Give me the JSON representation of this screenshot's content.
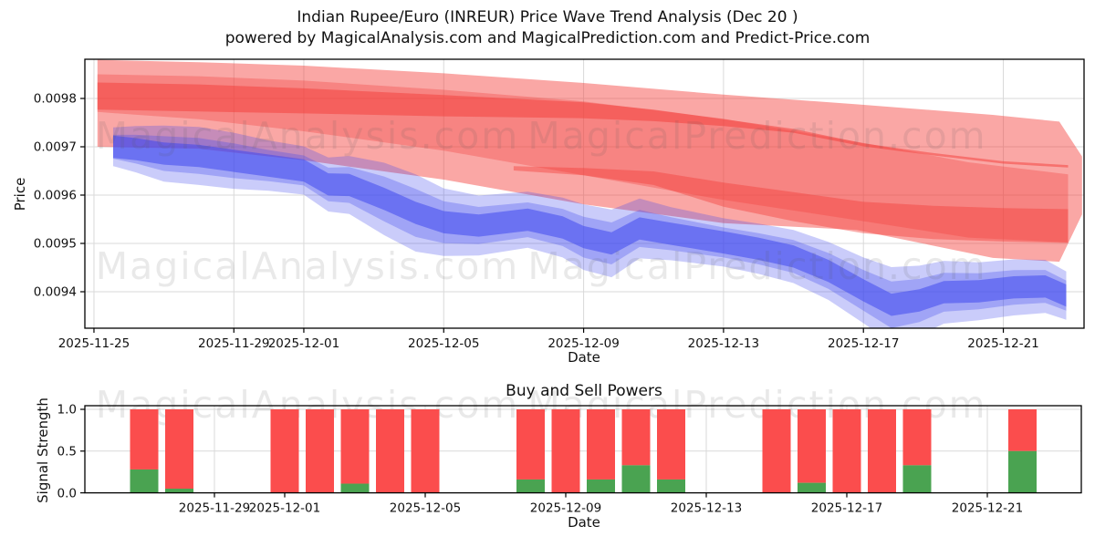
{
  "title": {
    "line1": "Indian Rupee/Euro (INREUR) Price Wave Trend Analysis (Dec 20 )",
    "line2": "powered by MagicalAnalysis.com and MagicalPrediction.com and Predict-Price.com"
  },
  "watermarks": {
    "left_text": "MagicalAnalysis.com",
    "right_text": "MagicalPrediction.com"
  },
  "colors": {
    "band_red_base": "244,60,56",
    "band_blue_base": "64,72,238",
    "red_light_alpha": 0.45,
    "red_mid_alpha": 0.32,
    "red_core_alpha": 0.5,
    "red_core2_alpha": 0.42,
    "blue_light_alpha": 0.28,
    "blue_mid_alpha": 0.3,
    "blue_core_alpha": 0.55,
    "bar_red": "#fb4d4d",
    "bar_green": "#4aa351",
    "grid": "#d9d9d9",
    "spine": "#000000",
    "tick_text": "#111111",
    "watermark_color": "#555555"
  },
  "chart_data": [
    {
      "type": "area",
      "title": "Indian Rupee/Euro (INREUR) Price Wave Trend Analysis (Dec 20 )",
      "xlabel": "Date",
      "ylabel": "Price",
      "day0": "2025-11-24",
      "x_ticks": [
        {
          "day": 1,
          "label": "2025-11-25"
        },
        {
          "day": 5,
          "label": "2025-11-29"
        },
        {
          "day": 7,
          "label": "2025-12-01"
        },
        {
          "day": 11,
          "label": "2025-12-05"
        },
        {
          "day": 15,
          "label": "2025-12-09"
        },
        {
          "day": 19,
          "label": "2025-12-13"
        },
        {
          "day": 23,
          "label": "2025-12-17"
        },
        {
          "day": 27,
          "label": "2025-12-21"
        }
      ],
      "y_ticks": [
        {
          "value": 0.0098,
          "label": "0.0098"
        },
        {
          "value": 0.0097,
          "label": "0.0097"
        },
        {
          "value": 0.0096,
          "label": "0.0096"
        },
        {
          "value": 0.0095,
          "label": "0.0095"
        },
        {
          "value": 0.0094,
          "label": "0.0094"
        }
      ],
      "ylim": [
        0.009325,
        0.009881
      ],
      "grid": true,
      "bands": {
        "red": {
          "light": {
            "d": [
              1.1,
              4,
              7,
              11,
              15,
              19,
              22.8,
              26.7,
              28.6,
              29.25
            ],
            "top": [
              0.00988,
              0.009875,
              0.009868,
              0.009852,
              0.009832,
              0.009808,
              0.009788,
              0.009766,
              0.009752,
              0.00968
            ],
            "bot": [
              0.0097,
              0.009696,
              0.009672,
              0.009632,
              0.009581,
              0.009542,
              0.009528,
              0.00947,
              0.009462,
              0.00956
            ]
          },
          "mid": {
            "d": [
              1.1,
              4,
              7,
              11,
              15,
              19,
              23,
              26,
              28.85
            ],
            "top": [
              0.00985,
              0.009846,
              0.009837,
              0.009818,
              0.009794,
              0.009758,
              0.009708,
              0.009668,
              0.009643
            ],
            "bot": [
              0.009772,
              0.009757,
              0.009732,
              0.009692,
              0.009641,
              0.00959,
              0.009546,
              0.009512,
              0.009502
            ]
          },
          "core": {
            "d": [
              1.1,
              4,
              7,
              11,
              15,
              17,
              19,
              21,
              23,
              25,
              27,
              28.85
            ],
            "top": [
              0.009833,
              0.009829,
              0.009821,
              0.009807,
              0.009792,
              0.009777,
              0.009757,
              0.009737,
              0.009707,
              0.009687,
              0.00967,
              0.009662
            ],
            "bot": [
              0.009777,
              0.009773,
              0.009769,
              0.009763,
              0.009759,
              0.009753,
              0.009743,
              0.009729,
              0.009701,
              0.009682,
              0.009665,
              0.009657
            ]
          },
          "core2": {
            "d": [
              13,
              15,
              17,
              19,
              21,
              23,
              25,
              27,
              28.85
            ],
            "top": [
              0.00966,
              0.009656,
              0.009649,
              0.009626,
              0.009606,
              0.009586,
              0.009578,
              0.009573,
              0.009571
            ],
            "bot": [
              0.009651,
              0.009641,
              0.009621,
              0.009576,
              0.009546,
              0.009521,
              0.009509,
              0.009504,
              0.009501
            ]
          }
        },
        "blue": {
          "points_d_center_halfwidth": [
            [
              1.55,
              0.0097,
              4e-05
            ],
            [
              2.2,
              0.009695,
              4.8e-05
            ],
            [
              3,
              0.009686,
              5.8e-05
            ],
            [
              4,
              0.009681,
              6e-05
            ],
            [
              5,
              0.009671,
              5.8e-05
            ],
            [
              6,
              0.009661,
              5.2e-05
            ],
            [
              7,
              0.009651,
              5e-05
            ],
            [
              7.7,
              0.009622,
              5.6e-05
            ],
            [
              8.3,
              0.009621,
              6e-05
            ],
            [
              9.3,
              0.009592,
              7.5e-05
            ],
            [
              10.2,
              0.009563,
              8e-05
            ],
            [
              11,
              0.009544,
              7e-05
            ],
            [
              12,
              0.009537,
              6.2e-05
            ],
            [
              13.4,
              0.009549,
              5.8e-05
            ],
            [
              14.4,
              0.009533,
              6.2e-05
            ],
            [
              15,
              0.009513,
              6.8e-05
            ],
            [
              15.8,
              0.0095,
              7e-05
            ],
            [
              16.6,
              0.009531,
              6.2e-05
            ],
            [
              17.5,
              0.00952,
              5.5e-05
            ],
            [
              19,
              0.009502,
              5e-05
            ],
            [
              20,
              0.009489,
              5.2e-05
            ],
            [
              21,
              0.009473,
              5.5e-05
            ],
            [
              22,
              0.009443,
              6e-05
            ],
            [
              23,
              0.009403,
              6.8e-05
            ],
            [
              23.8,
              0.009373,
              7.8e-05
            ],
            [
              24.6,
              0.009382,
              7.2e-05
            ],
            [
              25.3,
              0.009399,
              6.5e-05
            ],
            [
              26.3,
              0.009401,
              6e-05
            ],
            [
              27.3,
              0.009409,
              5.8e-05
            ],
            [
              28.2,
              0.009411,
              5.5e-05
            ],
            [
              28.8,
              0.009392,
              5e-05
            ]
          ],
          "mid_width_ratio": 0.62,
          "core_halfwidth": 2.3e-05
        }
      }
    },
    {
      "type": "bar",
      "title": "Buy and Sell Powers",
      "xlabel": "Date",
      "ylabel": "Signal Strength",
      "day0": "2025-11-24",
      "x_ticks": [
        {
          "day": 5,
          "label": "2025-11-29"
        },
        {
          "day": 7,
          "label": "2025-12-01"
        },
        {
          "day": 11,
          "label": "2025-12-05"
        },
        {
          "day": 15,
          "label": "2025-12-09"
        },
        {
          "day": 19,
          "label": "2025-12-13"
        },
        {
          "day": 23,
          "label": "2025-12-17"
        },
        {
          "day": 27,
          "label": "2025-12-21"
        }
      ],
      "y_ticks": [
        {
          "value": 0.0,
          "label": "0.0"
        },
        {
          "value": 0.5,
          "label": "0.5"
        },
        {
          "value": 1.0,
          "label": "1.0"
        }
      ],
      "ylim": [
        0,
        1.04
      ],
      "grid": true,
      "bars": [
        {
          "date": "2025-11-27",
          "day": 3,
          "total": 1.0,
          "buy": 0.28
        },
        {
          "date": "2025-11-28",
          "day": 4,
          "total": 1.0,
          "buy": 0.05
        },
        {
          "date": "2025-12-01",
          "day": 7,
          "total": 1.0,
          "buy": 0.0
        },
        {
          "date": "2025-12-02",
          "day": 8,
          "total": 1.0,
          "buy": 0.0
        },
        {
          "date": "2025-12-03",
          "day": 9,
          "total": 1.0,
          "buy": 0.11
        },
        {
          "date": "2025-12-04",
          "day": 10,
          "total": 1.0,
          "buy": 0.0
        },
        {
          "date": "2025-12-05",
          "day": 11,
          "total": 1.0,
          "buy": 0.0
        },
        {
          "date": "2025-12-08",
          "day": 14,
          "total": 1.0,
          "buy": 0.16
        },
        {
          "date": "2025-12-09",
          "day": 15,
          "total": 1.0,
          "buy": 0.0
        },
        {
          "date": "2025-12-10",
          "day": 16,
          "total": 1.0,
          "buy": 0.16
        },
        {
          "date": "2025-12-11",
          "day": 17,
          "total": 1.0,
          "buy": 0.33
        },
        {
          "date": "2025-12-12",
          "day": 18,
          "total": 1.0,
          "buy": 0.16
        },
        {
          "date": "2025-12-15",
          "day": 21,
          "total": 1.0,
          "buy": 0.0
        },
        {
          "date": "2025-12-16",
          "day": 22,
          "total": 1.0,
          "buy": 0.12
        },
        {
          "date": "2025-12-17",
          "day": 23,
          "total": 1.0,
          "buy": 0.0
        },
        {
          "date": "2025-12-18",
          "day": 24,
          "total": 1.0,
          "buy": 0.0
        },
        {
          "date": "2025-12-19",
          "day": 25,
          "total": 1.0,
          "buy": 0.33
        },
        {
          "date": "2025-12-22",
          "day": 28,
          "total": 1.0,
          "buy": 0.5
        }
      ]
    }
  ]
}
